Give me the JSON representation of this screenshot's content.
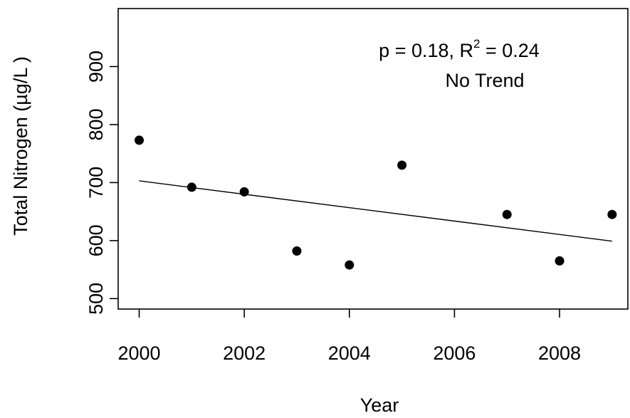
{
  "chart_data": {
    "type": "scatter",
    "title": "",
    "xlabel": "Year",
    "ylabel": "Total Nitrogen (µg/L )",
    "xlim": [
      1999.6,
      2009.3
    ],
    "ylim": [
      482,
      1000
    ],
    "xticks": [
      2000,
      2002,
      2004,
      2006,
      2008
    ],
    "yticks": [
      500,
      600,
      700,
      800,
      900
    ],
    "grid": false,
    "legend": "none",
    "series": [
      {
        "x": [
          2000,
          2001,
          2002,
          2003,
          2004,
          2005,
          2007,
          2008,
          2009
        ],
        "y": [
          773,
          692,
          684,
          582,
          558,
          730,
          645,
          565,
          645
        ]
      }
    ],
    "trend_line": {
      "x": [
        2000,
        2009
      ],
      "y": [
        703,
        599
      ]
    },
    "annotation": {
      "stats_prefix": "p = 0.18, R",
      "stats_superscript": "2",
      "stats_suffix": " = 0.24",
      "trend_text": "No Trend"
    },
    "colors": {
      "points": "#000000",
      "line": "#000000",
      "background": "#ffffff"
    }
  }
}
